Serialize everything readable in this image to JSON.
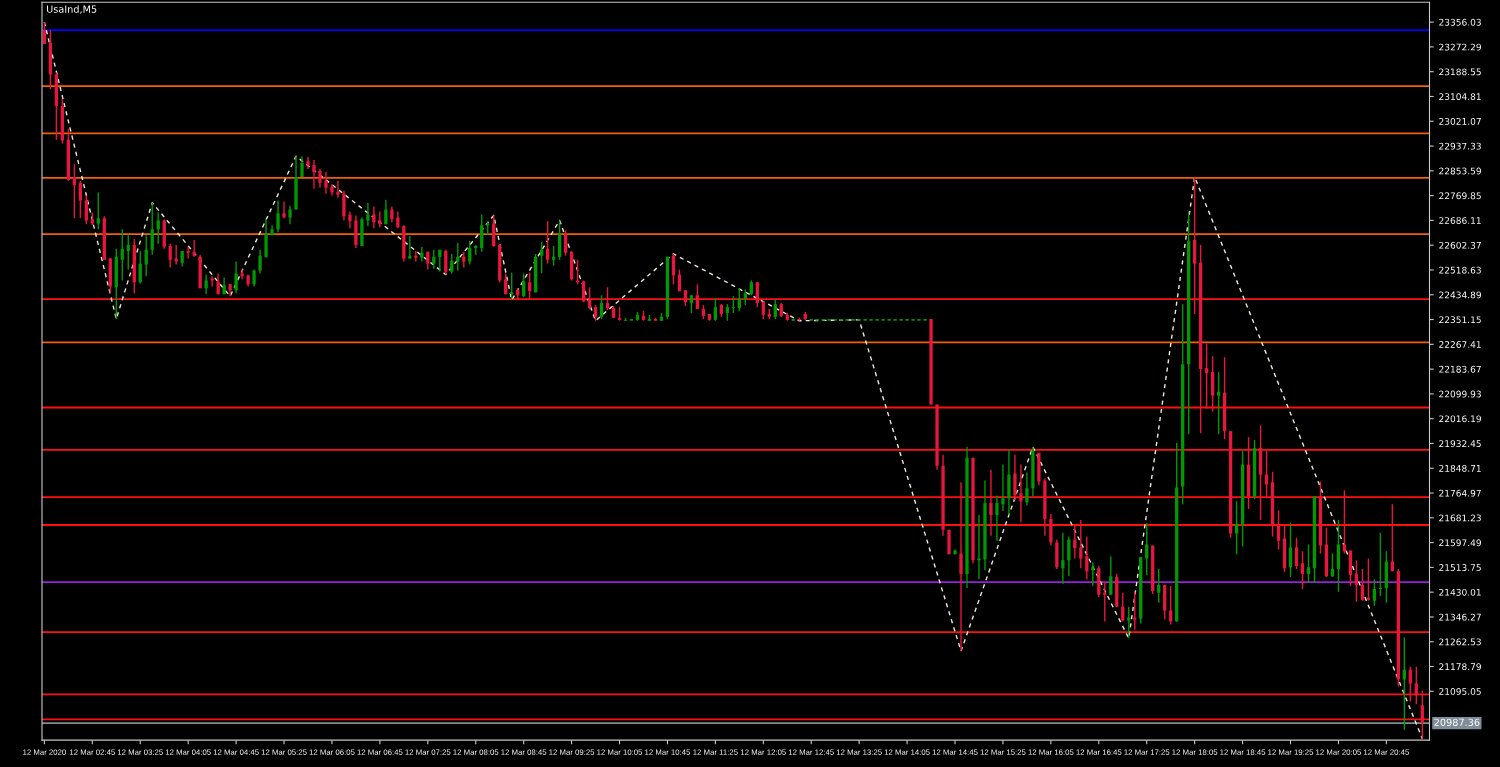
{
  "chart_data": {
    "type": "candlestick",
    "title": "UsaInd,M5",
    "colors": [
      "#e8163c",
      "#e8163c",
      "#e8163c",
      "#e8163c",
      "#e8163c",
      "#e8163c",
      "#e8163c",
      "#e8163c",
      "#e8163c",
      "#009a00",
      "#e8163c",
      "#e8163c",
      "#009a00",
      "#009a00",
      "#009a00",
      "#e8163c",
      "#009a00",
      "#009a00",
      "#009a00",
      "#009a00",
      "#e8163c",
      "#e8163c",
      "#e8163c",
      "#009a00",
      "#e8163c",
      "#e8163c",
      "#e8163c",
      "#009a00",
      "#e8163c",
      "#e8163c",
      "#009a00",
      "#e8163c",
      "#009a00",
      "#e8163c",
      "#e8163c",
      "#009a00",
      "#009a00",
      "#009a00",
      "#009a00",
      "#009a00",
      "#e8163c",
      "#009a00",
      "#009a00",
      "#009a00",
      "#e8163c",
      "#e8163c",
      "#e8163c",
      "#e8163c",
      "#e8163c",
      "#e8163c",
      "#e8163c",
      "#e8163c",
      "#e8163c",
      "#009a00",
      "#009a00",
      "#e8163c",
      "#e8163c",
      "#009a00",
      "#e8163c",
      "#e8163c",
      "#e8163c",
      "#009a00",
      "#e8163c",
      "#009a00",
      "#e8163c",
      "#009a00",
      "#009a00",
      "#e8163c",
      "#009a00",
      "#009a00",
      "#e8163c",
      "#009a00",
      "#009a00",
      "#009a00",
      "#009a00",
      "#e8163c",
      "#e8163c",
      "#e8163c",
      "#009a00",
      "#e8163c",
      "#009a00",
      "#e8163c",
      "#009a00",
      "#009a00",
      "#e8163c",
      "#009a00",
      "#009a00",
      "#e8163c",
      "#e8163c",
      "#e8163c",
      "#e8163c",
      "#e8163c",
      "#e8163c",
      "#009a00",
      "#e8163c",
      "#e8163c",
      "#e8163c",
      "#009a00",
      "#009a00",
      "#009a00",
      "#e8163c",
      "#009a00",
      "#e8163c",
      "#009a00",
      "#009a00",
      "#e8163c",
      "#e8163c",
      "#e8163c",
      "#009a00",
      "#e8163c",
      "#e8163c",
      "#e8163c",
      "#009a00",
      "#e8163c",
      "#009a00",
      "#009a00",
      "#009a00",
      "#009a00",
      "#009a00",
      "#e8163c",
      "#e8163c",
      "#e8163c",
      "#009a00",
      "#e8163c",
      "#e8163c",
      "#009a00",
      "#e8163c",
      "#e8163c",
      "#009a00",
      "#009a00",
      "#009a00",
      "#009a00",
      "#009a00",
      "#009a00",
      "#009a00",
      "#009a00",
      "#009a00",
      "#009a00",
      "#009a00",
      "#009a00",
      "#009a00",
      "#009a00",
      "#009a00",
      "#009a00",
      "#009a00",
      "#009a00",
      "#009a00",
      "#009a00",
      "#e8163c",
      "#e8163c",
      "#e8163c",
      "#e8163c",
      "#009a00",
      "#e8163c",
      "#009a00",
      "#e8163c",
      "#009a00",
      "#009a00",
      "#e8163c",
      "#009a00",
      "#009a00",
      "#009a00",
      "#e8163c",
      "#e8163c",
      "#009a00",
      "#009a00",
      "#e8163c",
      "#e8163c",
      "#e8163c",
      "#e8163c",
      "#009a00",
      "#009a00",
      "#e8163c",
      "#e8163c",
      "#e8163c",
      "#009a00",
      "#e8163c",
      "#e8163c",
      "#009a00",
      "#e8163c",
      "#e8163c",
      "#009a00",
      "#e8163c",
      "#009a00",
      "#009a00",
      "#e8163c",
      "#009a00",
      "#e8163c",
      "#e8163c",
      "#009a00",
      "#009a00",
      "#009a00",
      "#e8163c",
      "#e8163c",
      "#e8163c",
      "#e8163c",
      "#009a00",
      "#e8163c",
      "#e8163c",
      "#009a00",
      "#009a00",
      "#e8163c",
      "#009a00",
      "#e8163c",
      "#e8163c",
      "#e8163c",
      "#e8163c",
      "#e8163c",
      "#009a00",
      "#e8163c",
      "#e8163c",
      "#009a00",
      "#009a00",
      "#e8163c",
      "#e8163c",
      "#009a00",
      "#009a00",
      "#e8163c",
      "#e8163c",
      "#e8163c",
      "#e8163c",
      "#e8163c",
      "#009a00",
      "#009a00",
      "#009a00",
      "#e8163c",
      "#e8163c",
      "#009a00",
      "#e8163c",
      "#e8163c",
      "#e8163c"
    ],
    "x": [
      "2020-03-12T02:05",
      "2020-03-12T02:10",
      "2020-03-12T02:15",
      "2020-03-12T02:20",
      "2020-03-12T02:25",
      "2020-03-12T02:30",
      "2020-03-12T02:35",
      "2020-03-12T02:40",
      "2020-03-12T02:45",
      "2020-03-12T02:50",
      "2020-03-12T02:55",
      "2020-03-12T03:00",
      "2020-03-12T03:05",
      "2020-03-12T03:10",
      "2020-03-12T03:15",
      "2020-03-12T03:20",
      "2020-03-12T03:25",
      "2020-03-12T03:30",
      "2020-03-12T03:35",
      "2020-03-12T03:40",
      "2020-03-12T03:45",
      "2020-03-12T03:50",
      "2020-03-12T03:55",
      "2020-03-12T04:00",
      "2020-03-12T04:05",
      "2020-03-12T04:10",
      "2020-03-12T04:15",
      "2020-03-12T04:20",
      "2020-03-12T04:25",
      "2020-03-12T04:30",
      "2020-03-12T04:35",
      "2020-03-12T04:40",
      "2020-03-12T04:45",
      "2020-03-12T04:50",
      "2020-03-12T04:55",
      "2020-03-12T05:00",
      "2020-03-12T05:05",
      "2020-03-12T05:10",
      "2020-03-12T05:15",
      "2020-03-12T05:20",
      "2020-03-12T05:25",
      "2020-03-12T05:30",
      "2020-03-12T05:35",
      "2020-03-12T05:40",
      "2020-03-12T05:45",
      "2020-03-12T05:50",
      "2020-03-12T05:55",
      "2020-03-12T06:00",
      "2020-03-12T06:05",
      "2020-03-12T06:10",
      "2020-03-12T06:15",
      "2020-03-12T06:20",
      "2020-03-12T06:25",
      "2020-03-12T06:30",
      "2020-03-12T06:35",
      "2020-03-12T06:40",
      "2020-03-12T06:45",
      "2020-03-12T06:50",
      "2020-03-12T06:55",
      "2020-03-12T07:00",
      "2020-03-12T07:05",
      "2020-03-12T07:10",
      "2020-03-12T07:15",
      "2020-03-12T07:20",
      "2020-03-12T07:25",
      "2020-03-12T07:30",
      "2020-03-12T07:35",
      "2020-03-12T07:40",
      "2020-03-12T07:45",
      "2020-03-12T07:50",
      "2020-03-12T07:55",
      "2020-03-12T08:00",
      "2020-03-12T08:05",
      "2020-03-12T08:10",
      "2020-03-12T08:15",
      "2020-03-12T08:20",
      "2020-03-12T08:25",
      "2020-03-12T08:30",
      "2020-03-12T08:35",
      "2020-03-12T08:40",
      "2020-03-12T08:45",
      "2020-03-12T08:50",
      "2020-03-12T08:55",
      "2020-03-12T09:00",
      "2020-03-12T09:05",
      "2020-03-12T09:10",
      "2020-03-12T09:15",
      "2020-03-12T09:20",
      "2020-03-12T09:25",
      "2020-03-12T09:30",
      "2020-03-12T09:35",
      "2020-03-12T09:40",
      "2020-03-12T09:45",
      "2020-03-12T09:50",
      "2020-03-12T09:55",
      "2020-03-12T10:00",
      "2020-03-12T10:05",
      "2020-03-12T10:10",
      "2020-03-12T10:15",
      "2020-03-12T10:20",
      "2020-03-12T10:25",
      "2020-03-12T10:30",
      "2020-03-12T10:35",
      "2020-03-12T10:40",
      "2020-03-12T10:45",
      "2020-03-12T10:50",
      "2020-03-12T10:55",
      "2020-03-12T11:00",
      "2020-03-12T11:05",
      "2020-03-12T11:10",
      "2020-03-12T11:15",
      "2020-03-12T11:20",
      "2020-03-12T11:25",
      "2020-03-12T11:30",
      "2020-03-12T11:35",
      "2020-03-12T11:40",
      "2020-03-12T11:45",
      "2020-03-12T11:50",
      "2020-03-12T11:55",
      "2020-03-12T12:00",
      "2020-03-12T12:05",
      "2020-03-12T12:10",
      "2020-03-12T12:15",
      "2020-03-12T12:20",
      "2020-03-12T12:25",
      "2020-03-12T12:30",
      "2020-03-12T12:35",
      "2020-03-12T12:40",
      "2020-03-12T12:45",
      "2020-03-12T12:50",
      "2020-03-12T12:55",
      "2020-03-12T13:00",
      "2020-03-12T13:05",
      "2020-03-12T13:10",
      "2020-03-12T13:15",
      "2020-03-12T13:20",
      "2020-03-12T13:25",
      "2020-03-12T13:30",
      "2020-03-12T13:35",
      "2020-03-12T13:40",
      "2020-03-12T13:45",
      "2020-03-12T13:50",
      "2020-03-12T13:55",
      "2020-03-12T14:00",
      "2020-03-12T14:05",
      "2020-03-12T14:10",
      "2020-03-12T14:15",
      "2020-03-12T14:20",
      "2020-03-12T14:25",
      "2020-03-12T14:30",
      "2020-03-12T14:35",
      "2020-03-12T14:40",
      "2020-03-12T14:45",
      "2020-03-12T14:50",
      "2020-03-12T14:55",
      "2020-03-12T15:00",
      "2020-03-12T15:05",
      "2020-03-12T15:10",
      "2020-03-12T15:15",
      "2020-03-12T15:20",
      "2020-03-12T15:25",
      "2020-03-12T15:30",
      "2020-03-12T15:35",
      "2020-03-12T15:40",
      "2020-03-12T15:45",
      "2020-03-12T15:50",
      "2020-03-12T15:55",
      "2020-03-12T16:00",
      "2020-03-12T16:05",
      "2020-03-12T16:10",
      "2020-03-12T16:15",
      "2020-03-12T16:20",
      "2020-03-12T16:25",
      "2020-03-12T16:30",
      "2020-03-12T16:35",
      "2020-03-12T16:40",
      "2020-03-12T16:45",
      "2020-03-12T16:50",
      "2020-03-12T16:55",
      "2020-03-12T17:00",
      "2020-03-12T17:05",
      "2020-03-12T17:10",
      "2020-03-12T17:15",
      "2020-03-12T17:20",
      "2020-03-12T17:25",
      "2020-03-12T17:30",
      "2020-03-12T17:35",
      "2020-03-12T17:40",
      "2020-03-12T17:45",
      "2020-03-12T17:50",
      "2020-03-12T17:55",
      "2020-03-12T18:00",
      "2020-03-12T18:05",
      "2020-03-12T18:10",
      "2020-03-12T18:15",
      "2020-03-12T18:20",
      "2020-03-12T18:25",
      "2020-03-12T18:30",
      "2020-03-12T18:35",
      "2020-03-12T18:40",
      "2020-03-12T18:45",
      "2020-03-12T18:50",
      "2020-03-12T18:55",
      "2020-03-12T19:00",
      "2020-03-12T19:05",
      "2020-03-12T19:10",
      "2020-03-12T19:15",
      "2020-03-12T19:20",
      "2020-03-12T19:25",
      "2020-03-12T19:30",
      "2020-03-12T19:35",
      "2020-03-12T19:40",
      "2020-03-12T19:45",
      "2020-03-12T19:50",
      "2020-03-12T19:55",
      "2020-03-12T20:00",
      "2020-03-12T20:05",
      "2020-03-12T20:10",
      "2020-03-12T20:15",
      "2020-03-12T20:20",
      "2020-03-12T20:25",
      "2020-03-12T20:30",
      "2020-03-12T20:35",
      "2020-03-12T20:40",
      "2020-03-12T20:45",
      "2020-03-12T20:50",
      "2020-03-12T20:55",
      "2020-03-12T21:00",
      "2020-03-12T21:05",
      "2020-03-12T21:10",
      "2020-03-12T21:15"
    ],
    "ohlc": [
      [
        23329,
        23356,
        23282,
        23282
      ],
      [
        23286,
        23329,
        23129,
        23179
      ],
      [
        23179,
        23186,
        22959,
        23073
      ],
      [
        23073,
        23096,
        22946,
        22956
      ],
      [
        22959,
        22996,
        22820,
        22823
      ],
      [
        22833,
        22876,
        22693,
        22806
      ],
      [
        22813,
        22820,
        22693,
        22753
      ],
      [
        22753,
        22770,
        22673,
        22686
      ],
      [
        22690,
        22713,
        22670,
        22676
      ],
      [
        22676,
        22780,
        22656,
        22693
      ],
      [
        22693,
        22700,
        22553,
        22553
      ],
      [
        22557,
        22560,
        22440,
        22463
      ],
      [
        22460,
        22590,
        22353,
        22563
      ],
      [
        22553,
        22656,
        22483,
        22590
      ],
      [
        22583,
        22636,
        22520,
        22603
      ],
      [
        22603,
        22623,
        22440,
        22477
      ],
      [
        22477,
        22583,
        22473,
        22540
      ],
      [
        22537,
        22636,
        22497,
        22587
      ],
      [
        22587,
        22746,
        22570,
        22656
      ],
      [
        22656,
        22713,
        22607,
        22686
      ],
      [
        22686,
        22690,
        22590,
        22597
      ],
      [
        22600,
        22607,
        22527,
        22553
      ],
      [
        22557,
        22603,
        22537,
        22547
      ],
      [
        22543,
        22583,
        22530,
        22583
      ],
      [
        22583,
        22597,
        22557,
        22577
      ],
      [
        22580,
        22620,
        22563,
        22567
      ],
      [
        22563,
        22570,
        22457,
        22457
      ],
      [
        22457,
        22503,
        22437,
        22483
      ],
      [
        22490,
        22497,
        22463,
        22483
      ],
      [
        22480,
        22507,
        22437,
        22437
      ],
      [
        22437,
        22493,
        22437,
        22467
      ],
      [
        22470,
        22470,
        22430,
        22450
      ],
      [
        22450,
        22547,
        22440,
        22507
      ],
      [
        22507,
        22520,
        22487,
        22497
      ],
      [
        22500,
        22503,
        22463,
        22470
      ],
      [
        22470,
        22520,
        22463,
        22517
      ],
      [
        22517,
        22587,
        22507,
        22567
      ],
      [
        22563,
        22690,
        22560,
        22640
      ],
      [
        22636,
        22670,
        22636,
        22656
      ],
      [
        22656,
        22753,
        22646,
        22710
      ],
      [
        22710,
        22750,
        22693,
        22696
      ],
      [
        22696,
        22736,
        22673,
        22723
      ],
      [
        22723,
        22903,
        22723,
        22833
      ],
      [
        22833,
        22903,
        22833,
        22880
      ],
      [
        22886,
        22900,
        22860,
        22873
      ],
      [
        22873,
        22890,
        22793,
        22850
      ],
      [
        22853,
        22860,
        22796,
        22813
      ],
      [
        22820,
        22850,
        22776,
        22796
      ],
      [
        22800,
        22810,
        22770,
        22780
      ],
      [
        22783,
        22820,
        22763,
        22773
      ],
      [
        22776,
        22786,
        22686,
        22700
      ],
      [
        22706,
        22716,
        22660,
        22683
      ],
      [
        22686,
        22703,
        22593,
        22603
      ],
      [
        22600,
        22696,
        22600,
        22690
      ],
      [
        22686,
        22746,
        22666,
        22706
      ],
      [
        22706,
        22733,
        22660,
        22680
      ],
      [
        22686,
        22716,
        22663,
        22673
      ],
      [
        22673,
        22756,
        22673,
        22723
      ],
      [
        22723,
        22733,
        22680,
        22690
      ],
      [
        22696,
        22716,
        22660,
        22663
      ],
      [
        22667,
        22670,
        22547,
        22557
      ],
      [
        22557,
        22633,
        22557,
        22567
      ],
      [
        22567,
        22583,
        22547,
        22560
      ],
      [
        22560,
        22597,
        22547,
        22577
      ],
      [
        22580,
        22580,
        22520,
        22540
      ],
      [
        22540,
        22587,
        22523,
        22563
      ],
      [
        22563,
        22587,
        22513,
        22587
      ],
      [
        22583,
        22587,
        22503,
        22513
      ],
      [
        22513,
        22573,
        22507,
        22550
      ],
      [
        22547,
        22610,
        22517,
        22563
      ],
      [
        22563,
        22580,
        22527,
        22547
      ],
      [
        22547,
        22617,
        22537,
        22593
      ],
      [
        22593,
        22603,
        22570,
        22600
      ],
      [
        22593,
        22706,
        22580,
        22670
      ],
      [
        22670,
        22680,
        22636,
        22676
      ],
      [
        22676,
        22703,
        22597,
        22600
      ],
      [
        22603,
        22607,
        22477,
        22483
      ],
      [
        22487,
        22507,
        22437,
        22437
      ],
      [
        22440,
        22510,
        22417,
        22440
      ],
      [
        22450,
        22457,
        22420,
        22433
      ],
      [
        22430,
        22507,
        22427,
        22480
      ],
      [
        22477,
        22510,
        22417,
        22447
      ],
      [
        22443,
        22573,
        22443,
        22563
      ],
      [
        22567,
        22613,
        22507,
        22587
      ],
      [
        22590,
        22683,
        22540,
        22553
      ],
      [
        22553,
        22600,
        22533,
        22563
      ],
      [
        22563,
        22686,
        22553,
        22640
      ],
      [
        22640,
        22653,
        22567,
        22577
      ],
      [
        22580,
        22580,
        22483,
        22487
      ],
      [
        22483,
        22553,
        22470,
        22477
      ],
      [
        22480,
        22483,
        22410,
        22413
      ],
      [
        22420,
        22460,
        22387,
        22390
      ],
      [
        22393,
        22400,
        22347,
        22360
      ],
      [
        22360,
        22433,
        22353,
        22407
      ],
      [
        22407,
        22460,
        22383,
        22390
      ],
      [
        22390,
        22397,
        22357,
        22357
      ],
      [
        22357,
        22393,
        22347,
        22350
      ],
      [
        22347,
        22357,
        22347,
        22350
      ],
      [
        22350,
        22350,
        22350,
        22350
      ],
      [
        22350,
        22377,
        22347,
        22367
      ],
      [
        22363,
        22380,
        22347,
        22350
      ],
      [
        22350,
        22367,
        22347,
        22350
      ],
      [
        22353,
        22357,
        22347,
        22347
      ],
      [
        22347,
        22373,
        22347,
        22360
      ],
      [
        22360,
        22563,
        22353,
        22563
      ],
      [
        22567,
        22573,
        22470,
        22500
      ],
      [
        22503,
        22520,
        22447,
        22447
      ],
      [
        22450,
        22450,
        22397,
        22410
      ],
      [
        22407,
        22433,
        22373,
        22433
      ],
      [
        22433,
        22470,
        22387,
        22387
      ],
      [
        22387,
        22400,
        22353,
        22363
      ],
      [
        22370,
        22370,
        22347,
        22350
      ],
      [
        22350,
        22423,
        22347,
        22393
      ],
      [
        22400,
        22403,
        22360,
        22370
      ],
      [
        22373,
        22403,
        22347,
        22393
      ],
      [
        22390,
        22430,
        22373,
        22393
      ],
      [
        22390,
        22457,
        22380,
        22423
      ],
      [
        22420,
        22453,
        22400,
        22440
      ],
      [
        22437,
        22483,
        22433,
        22477
      ],
      [
        22477,
        22477,
        22393,
        22407
      ],
      [
        22410,
        22413,
        22353,
        22367
      ],
      [
        22370,
        22387,
        22353,
        22360
      ],
      [
        22360,
        22417,
        22353,
        22403
      ],
      [
        22403,
        22407,
        22360,
        22363
      ],
      [
        22367,
        22373,
        22347,
        22350
      ],
      [
        22350,
        22350,
        22347,
        22350
      ],
      [
        22353,
        22357,
        22347,
        22350
      ],
      [
        22370,
        22377,
        22350,
        22353
      ],
      [
        22350,
        22350,
        22350,
        22350
      ],
      [
        22350,
        22350,
        22350,
        22350
      ],
      [
        22350,
        22350,
        22350,
        22350
      ],
      [
        22350,
        22350,
        22350,
        22350
      ],
      [
        22350,
        22350,
        22350,
        22350
      ],
      [
        22350,
        22350,
        22350,
        22350
      ],
      [
        22350,
        22350,
        22350,
        22350
      ],
      [
        22350,
        22350,
        22350,
        22350
      ],
      [
        22350,
        22350,
        22350,
        22350
      ],
      [
        22350,
        22350,
        22350,
        22350
      ],
      [
        22350,
        22350,
        22350,
        22350
      ],
      [
        22350,
        22350,
        22350,
        22350
      ],
      [
        22350,
        22350,
        22350,
        22350
      ],
      [
        22350,
        22350,
        22350,
        22350
      ],
      [
        22350,
        22350,
        22350,
        22350
      ],
      [
        22350,
        22350,
        22350,
        22350
      ],
      [
        22350,
        22350,
        22350,
        22350
      ],
      [
        22350,
        22350,
        22350,
        22350
      ],
      [
        22350,
        22350,
        22350,
        22350
      ],
      [
        22350,
        22350,
        22350,
        22350
      ],
      [
        22353,
        22353,
        22064,
        22064
      ],
      [
        22064,
        22064,
        21844,
        21857
      ],
      [
        21857,
        21894,
        21621,
        21641
      ],
      [
        21641,
        21641,
        21558,
        21558
      ],
      [
        21558,
        21574,
        21558,
        21571
      ],
      [
        21561,
        21801,
        21231,
        21491
      ],
      [
        21491,
        21921,
        21444,
        21884
      ],
      [
        21884,
        21884,
        21528,
        21538
      ],
      [
        21538,
        21691,
        21474,
        21544
      ],
      [
        21541,
        21807,
        21504,
        21731
      ],
      [
        21731,
        21844,
        21621,
        21691
      ],
      [
        21691,
        21757,
        21604,
        21731
      ],
      [
        21727,
        21861,
        21704,
        21747
      ],
      [
        21747,
        21911,
        21691,
        21827
      ],
      [
        21831,
        21894,
        21741,
        21757
      ],
      [
        21764,
        21861,
        21667,
        21737
      ],
      [
        21734,
        21834,
        21724,
        21781
      ],
      [
        21781,
        21921,
        21754,
        21907
      ],
      [
        21901,
        21901,
        21791,
        21804
      ],
      [
        21807,
        21814,
        21621,
        21677
      ],
      [
        21677,
        21694,
        21588,
        21598
      ],
      [
        21598,
        21608,
        21508,
        21514
      ],
      [
        21511,
        21631,
        21458,
        21538
      ],
      [
        21538,
        21618,
        21484,
        21608
      ],
      [
        21608,
        21654,
        21544,
        21578
      ],
      [
        21581,
        21674,
        21511,
        21544
      ],
      [
        21551,
        21618,
        21474,
        21501
      ],
      [
        21504,
        21531,
        21451,
        21514
      ],
      [
        21511,
        21518,
        21414,
        21421
      ],
      [
        21428,
        21464,
        21331,
        21421
      ],
      [
        21421,
        21551,
        21421,
        21484
      ],
      [
        21481,
        21491,
        21381,
        21381
      ],
      [
        21381,
        21428,
        21331,
        21334
      ],
      [
        21334,
        21381,
        21274,
        21344
      ],
      [
        21344,
        21431,
        21304,
        21338
      ],
      [
        21341,
        21548,
        21324,
        21548
      ],
      [
        21544,
        21664,
        21488,
        21591
      ],
      [
        21588,
        21588,
        21424,
        21434
      ],
      [
        21428,
        21508,
        21394,
        21454
      ],
      [
        21454,
        21454,
        21338,
        21368
      ],
      [
        21368,
        21451,
        21321,
        21331
      ],
      [
        21331,
        21934,
        21331,
        21784
      ],
      [
        21787,
        22403,
        21727,
        22200
      ],
      [
        22200,
        22716,
        21964,
        22616
      ],
      [
        22620,
        22833,
        22370,
        22540
      ],
      [
        22543,
        22603,
        21967,
        22184
      ],
      [
        22187,
        22270,
        22050,
        22170
      ],
      [
        22174,
        22227,
        22040,
        22094
      ],
      [
        22094,
        22174,
        21964,
        22107
      ],
      [
        22104,
        22224,
        21947,
        21974
      ],
      [
        21974,
        21974,
        21614,
        21628
      ],
      [
        21628,
        21737,
        21558,
        21661
      ],
      [
        21657,
        21907,
        21584,
        21861
      ],
      [
        21861,
        21954,
        21711,
        21754
      ],
      [
        21754,
        21944,
        21744,
        21917
      ],
      [
        21917,
        21994,
        21674,
        21827
      ],
      [
        21827,
        21907,
        21747,
        21794
      ],
      [
        21801,
        21837,
        21618,
        21657
      ],
      [
        21657,
        21707,
        21574,
        21604
      ],
      [
        21611,
        21657,
        21498,
        21511
      ],
      [
        21514,
        21664,
        21481,
        21581
      ],
      [
        21581,
        21614,
        21508,
        21518
      ],
      [
        21528,
        21568,
        21441,
        21491
      ],
      [
        21491,
        21591,
        21461,
        21514
      ],
      [
        21511,
        21754,
        21461,
        21754
      ],
      [
        21754,
        21804,
        21561,
        21588
      ],
      [
        21591,
        21648,
        21481,
        21484
      ],
      [
        21484,
        21561,
        21481,
        21508
      ],
      [
        21508,
        21674,
        21431,
        21591
      ],
      [
        21591,
        21774,
        21561,
        21568
      ],
      [
        21571,
        21571,
        21451,
        21488
      ],
      [
        21491,
        21538,
        21398,
        21454
      ],
      [
        21454,
        21508,
        21401,
        21404
      ],
      [
        21411,
        21544,
        21401,
        21404
      ],
      [
        21401,
        21474,
        21384,
        21441
      ],
      [
        21441,
        21631,
        21418,
        21444
      ],
      [
        21444,
        21568,
        21394,
        21534
      ],
      [
        21534,
        21727,
        21501,
        21501
      ],
      [
        21501,
        21508,
        21111,
        21135
      ],
      [
        21135,
        21278,
        20965,
        21168
      ],
      [
        21168,
        21178,
        21061,
        21121
      ],
      [
        21121,
        21178,
        21051,
        21081
      ],
      [
        21048,
        21098,
        20935,
        20988
      ]
    ],
    "series": [
      {
        "type": "line",
        "color": "#f2ead2",
        "x": [
          "2020-03-12T02:05",
          "2020-03-12T03:05",
          "2020-03-12T03:35",
          "2020-03-12T04:40",
          "2020-03-12T05:35",
          "2020-03-12T07:40",
          "2020-03-12T08:20",
          "2020-03-12T08:35",
          "2020-03-12T09:15",
          "2020-03-12T09:45",
          "2020-03-12T10:50",
          "2020-03-12T12:35",
          "2020-03-12T13:25",
          "2020-03-12T14:50",
          "2020-03-12T15:50",
          "2020-03-12T17:10",
          "2020-03-12T18:05",
          "2020-03-12T21:15"
        ],
        "values": [
          23356,
          22353,
          22746,
          22430,
          22903,
          22503,
          22703,
          22417,
          22686,
          22347,
          22573,
          22347,
          22350,
          21231,
          21921,
          21274,
          22833,
          20935
        ]
      }
    ],
    "line_style": "dashed",
    "xlim": [
      "2020-03-12T02:03",
      "2020-03-12T21:21"
    ],
    "xticks": [
      {
        "value": "2020-03-12T02:05",
        "label": "12 Mar 2020"
      },
      {
        "value": "2020-03-12T02:45",
        "label": "12 Mar 02:45"
      },
      {
        "value": "2020-03-12T03:25",
        "label": "12 Mar 03:25"
      },
      {
        "value": "2020-03-12T04:05",
        "label": "12 Mar 04:05"
      },
      {
        "value": "2020-03-12T04:45",
        "label": "12 Mar 04:45"
      },
      {
        "value": "2020-03-12T05:25",
        "label": "12 Mar 05:25"
      },
      {
        "value": "2020-03-12T06:05",
        "label": "12 Mar 06:05"
      },
      {
        "value": "2020-03-12T06:45",
        "label": "12 Mar 06:45"
      },
      {
        "value": "2020-03-12T07:25",
        "label": "12 Mar 07:25"
      },
      {
        "value": "2020-03-12T08:05",
        "label": "12 Mar 08:05"
      },
      {
        "value": "2020-03-12T08:45",
        "label": "12 Mar 08:45"
      },
      {
        "value": "2020-03-12T09:25",
        "label": "12 Mar 09:25"
      },
      {
        "value": "2020-03-12T10:05",
        "label": "12 Mar 10:05"
      },
      {
        "value": "2020-03-12T10:45",
        "label": "12 Mar 10:45"
      },
      {
        "value": "2020-03-12T11:25",
        "label": "12 Mar 11:25"
      },
      {
        "value": "2020-03-12T12:05",
        "label": "12 Mar 12:05"
      },
      {
        "value": "2020-03-12T12:45",
        "label": "12 Mar 12:45"
      },
      {
        "value": "2020-03-12T13:25",
        "label": "12 Mar 13:25"
      },
      {
        "value": "2020-03-12T14:05",
        "label": "12 Mar 14:05"
      },
      {
        "value": "2020-03-12T14:45",
        "label": "12 Mar 14:45"
      },
      {
        "value": "2020-03-12T15:25",
        "label": "12 Mar 15:25"
      },
      {
        "value": "2020-03-12T16:05",
        "label": "12 Mar 16:05"
      },
      {
        "value": "2020-03-12T16:45",
        "label": "12 Mar 16:45"
      },
      {
        "value": "2020-03-12T17:25",
        "label": "12 Mar 17:25"
      },
      {
        "value": "2020-03-12T18:05",
        "label": "12 Mar 18:05"
      },
      {
        "value": "2020-03-12T18:45",
        "label": "12 Mar 18:45"
      },
      {
        "value": "2020-03-12T19:25",
        "label": "12 Mar 19:25"
      },
      {
        "value": "2020-03-12T20:05",
        "label": "12 Mar 20:05"
      },
      {
        "value": "2020-03-12T20:45",
        "label": "12 Mar 20:45"
      }
    ],
    "ylim": [
      20930,
      23423
    ],
    "yticks": [
      23356.03,
      23272.29,
      23188.55,
      23104.81,
      23021.07,
      22937.33,
      22853.59,
      22769.85,
      22686.11,
      22602.37,
      22518.63,
      22434.89,
      22351.15,
      22267.41,
      22183.67,
      22099.93,
      22016.19,
      21932.45,
      21848.71,
      21764.97,
      21681.23,
      21597.49,
      21513.75,
      21430.01,
      21346.27,
      21262.53,
      21178.79,
      21095.05
    ],
    "ref_lines": [
      {
        "axis": "y",
        "value": 23329,
        "color": "#0000ff"
      },
      {
        "axis": "y",
        "value": 23140,
        "color": "#f0600a"
      },
      {
        "axis": "y",
        "value": 22980,
        "color": "#f0600a"
      },
      {
        "axis": "y",
        "value": 22830,
        "color": "#f0600a"
      },
      {
        "axis": "y",
        "value": 22640,
        "color": "#f0600a"
      },
      {
        "axis": "y",
        "value": 22420,
        "color": "#ff1010"
      },
      {
        "axis": "y",
        "value": 22274,
        "color": "#f0600a"
      },
      {
        "axis": "y",
        "value": 22054,
        "color": "#ff1010"
      },
      {
        "axis": "y",
        "value": 21911,
        "color": "#ff1010"
      },
      {
        "axis": "y",
        "value": 21751,
        "color": "#ff1010"
      },
      {
        "axis": "y",
        "value": 21657,
        "color": "#ff1010"
      },
      {
        "axis": "y",
        "value": 21464,
        "color": "#9a1ee0"
      },
      {
        "axis": "y",
        "value": 21295,
        "color": "#ff1010"
      },
      {
        "axis": "y",
        "value": 21085,
        "color": "#ff1010"
      },
      {
        "axis": "y",
        "value": 21000,
        "color": "#ff1010"
      },
      {
        "axis": "y",
        "value": 20987.36,
        "label": "20987.36",
        "color": "#7f8c99"
      }
    ],
    "grid": false
  }
}
